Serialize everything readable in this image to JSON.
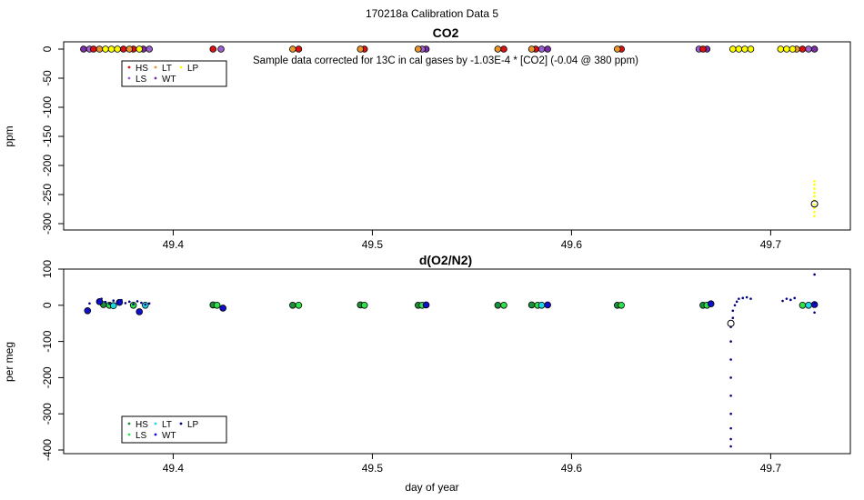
{
  "page_title": "170218a   Calibration Data 5",
  "xlabel": "day of year",
  "colors": {
    "HS": "#dd1111",
    "LS": "#9d5fd0",
    "LT": "#e8962a",
    "WT": "#7b2ea5",
    "LP": "#ffff00",
    "O2_HS": "#1b8f3a",
    "O2_LS": "#2ee24c",
    "O2_LT": "#22d6dd",
    "O2_WT": "#1010cc",
    "O2_LP": "#000080"
  },
  "chart_data": [
    {
      "type": "scatter",
      "title": "CO2",
      "ylabel": "ppm",
      "subtitle": "Sample data corrected for 13C in cal gases by -1.03E-4 * [CO2] (-0.04 @ 380 ppm)",
      "xlim": [
        49.345,
        49.74
      ],
      "ylim": [
        -300,
        0
      ],
      "xticks": [
        49.4,
        49.5,
        49.6,
        49.7
      ],
      "yticks": [
        0,
        -50,
        -100,
        -150,
        -200,
        -250,
        -300
      ],
      "xtick_labels": [
        "49.4",
        "49.5",
        "49.6",
        "49.7"
      ],
      "ytick_labels": [
        "0",
        "-50",
        "-100",
        "-150",
        "-200",
        "-250",
        "-300"
      ],
      "legend": {
        "placement": "top-left",
        "entries": [
          "HS",
          "LT",
          "LP",
          "LS",
          "WT"
        ]
      },
      "series": [
        {
          "name": "WT",
          "color": "#7b2ea5",
          "x": [
            49.355,
            49.385,
            49.527,
            49.588,
            49.668,
            49.722
          ],
          "y": [
            0,
            0,
            0,
            0,
            0,
            0
          ]
        },
        {
          "name": "LS",
          "color": "#9d5fd0",
          "x": [
            49.358,
            49.388,
            49.424,
            49.525,
            49.585,
            49.664,
            49.719
          ],
          "y": [
            0,
            0,
            0,
            0,
            0,
            0,
            0
          ]
        },
        {
          "name": "HS",
          "color": "#dd1111",
          "x": [
            49.36,
            49.375,
            49.38,
            49.42,
            49.463,
            49.496,
            49.566,
            49.582,
            49.625,
            49.666,
            49.716
          ],
          "y": [
            0,
            0,
            0,
            0,
            0,
            0,
            0,
            0,
            0,
            0,
            0
          ]
        },
        {
          "name": "LT",
          "color": "#e8962a",
          "x": [
            49.363,
            49.378,
            49.46,
            49.494,
            49.523,
            49.563,
            49.58,
            49.623,
            49.713
          ],
          "y": [
            0,
            0,
            0,
            0,
            0,
            0,
            0,
            0,
            0
          ]
        },
        {
          "name": "LP",
          "color": "#ffff00",
          "x": [
            49.366,
            49.369,
            49.372,
            49.383,
            49.681,
            49.684,
            49.687,
            49.69,
            49.705,
            49.708,
            49.711
          ],
          "y": [
            0,
            0,
            0,
            0,
            0,
            0,
            0,
            0,
            0,
            0,
            0
          ]
        },
        {
          "name": "LP ambient",
          "color": "#ffff00",
          "x": [
            49.722,
            49.722,
            49.722,
            49.722,
            49.722,
            49.722,
            49.722,
            49.722,
            49.722,
            49.722
          ],
          "y": [
            -227,
            -233,
            -240,
            -247,
            -253,
            -260,
            -267,
            -273,
            -280,
            -287
          ]
        },
        {
          "name": "mean",
          "color": "#000000",
          "x": [
            49.722
          ],
          "y": [
            -266
          ]
        }
      ]
    },
    {
      "type": "scatter",
      "title": "d(O2/N2)",
      "ylabel": "per meg",
      "xlabel": "day of year",
      "xlim": [
        49.345,
        49.74
      ],
      "ylim": [
        -400,
        100
      ],
      "xticks": [
        49.4,
        49.5,
        49.6,
        49.7
      ],
      "yticks": [
        100,
        0,
        -100,
        -200,
        -300,
        -400
      ],
      "xtick_labels": [
        "49.4",
        "49.5",
        "49.6",
        "49.7"
      ],
      "ytick_labels": [
        "100",
        "0",
        "-100",
        "-200",
        "-300",
        "-400"
      ],
      "legend": {
        "placement": "bottom-left",
        "entries": [
          "HS",
          "LT",
          "LP",
          "LS",
          "WT"
        ]
      },
      "series": [
        {
          "name": "HS",
          "color": "#1b8f3a",
          "x": [
            49.365,
            49.42,
            49.46,
            49.494,
            49.523,
            49.563,
            49.58,
            49.623,
            49.666
          ],
          "y": [
            2,
            1,
            0,
            1,
            0,
            0,
            1,
            0,
            0
          ]
        },
        {
          "name": "LS",
          "color": "#2ee24c",
          "x": [
            49.368,
            49.38,
            49.422,
            49.463,
            49.496,
            49.525,
            49.566,
            49.583,
            49.625,
            49.668,
            49.716
          ],
          "y": [
            0,
            0,
            0,
            0,
            0,
            0,
            0,
            0,
            0,
            0,
            0
          ]
        },
        {
          "name": "LT",
          "color": "#22d6dd",
          "x": [
            49.37,
            49.386,
            49.585,
            49.719
          ],
          "y": [
            -1,
            0,
            0,
            0
          ]
        },
        {
          "name": "WT",
          "color": "#1010cc",
          "x": [
            49.357,
            49.363,
            49.373,
            49.383,
            49.425,
            49.527,
            49.588,
            49.67,
            49.722
          ],
          "y": [
            -15,
            10,
            8,
            -18,
            -8,
            1,
            1,
            4,
            2
          ]
        },
        {
          "name": "LP",
          "color": "#000080",
          "x": [
            49.358,
            49.362,
            49.364,
            49.366,
            49.368,
            49.37,
            49.372,
            49.374,
            49.376,
            49.378,
            49.38,
            49.382,
            49.384,
            49.386,
            49.388,
            49.68,
            49.68,
            49.68,
            49.68,
            49.68,
            49.68,
            49.68,
            49.68,
            49.68,
            49.681,
            49.681,
            49.682,
            49.683,
            49.684,
            49.686,
            49.688,
            49.69,
            49.706,
            49.708,
            49.71,
            49.712,
            49.722,
            49.722,
            49.722
          ],
          "y": [
            5,
            12,
            18,
            9,
            4,
            13,
            8,
            14,
            6,
            10,
            3,
            11,
            7,
            2,
            5,
            -390,
            -370,
            -340,
            -300,
            -250,
            -200,
            -150,
            -100,
            -60,
            -35,
            -15,
            0,
            10,
            18,
            20,
            22,
            18,
            12,
            18,
            15,
            20,
            85,
            5,
            -20
          ]
        },
        {
          "name": "mean",
          "color": "#000000",
          "x": [
            49.68
          ],
          "y": [
            -50
          ]
        }
      ]
    }
  ]
}
